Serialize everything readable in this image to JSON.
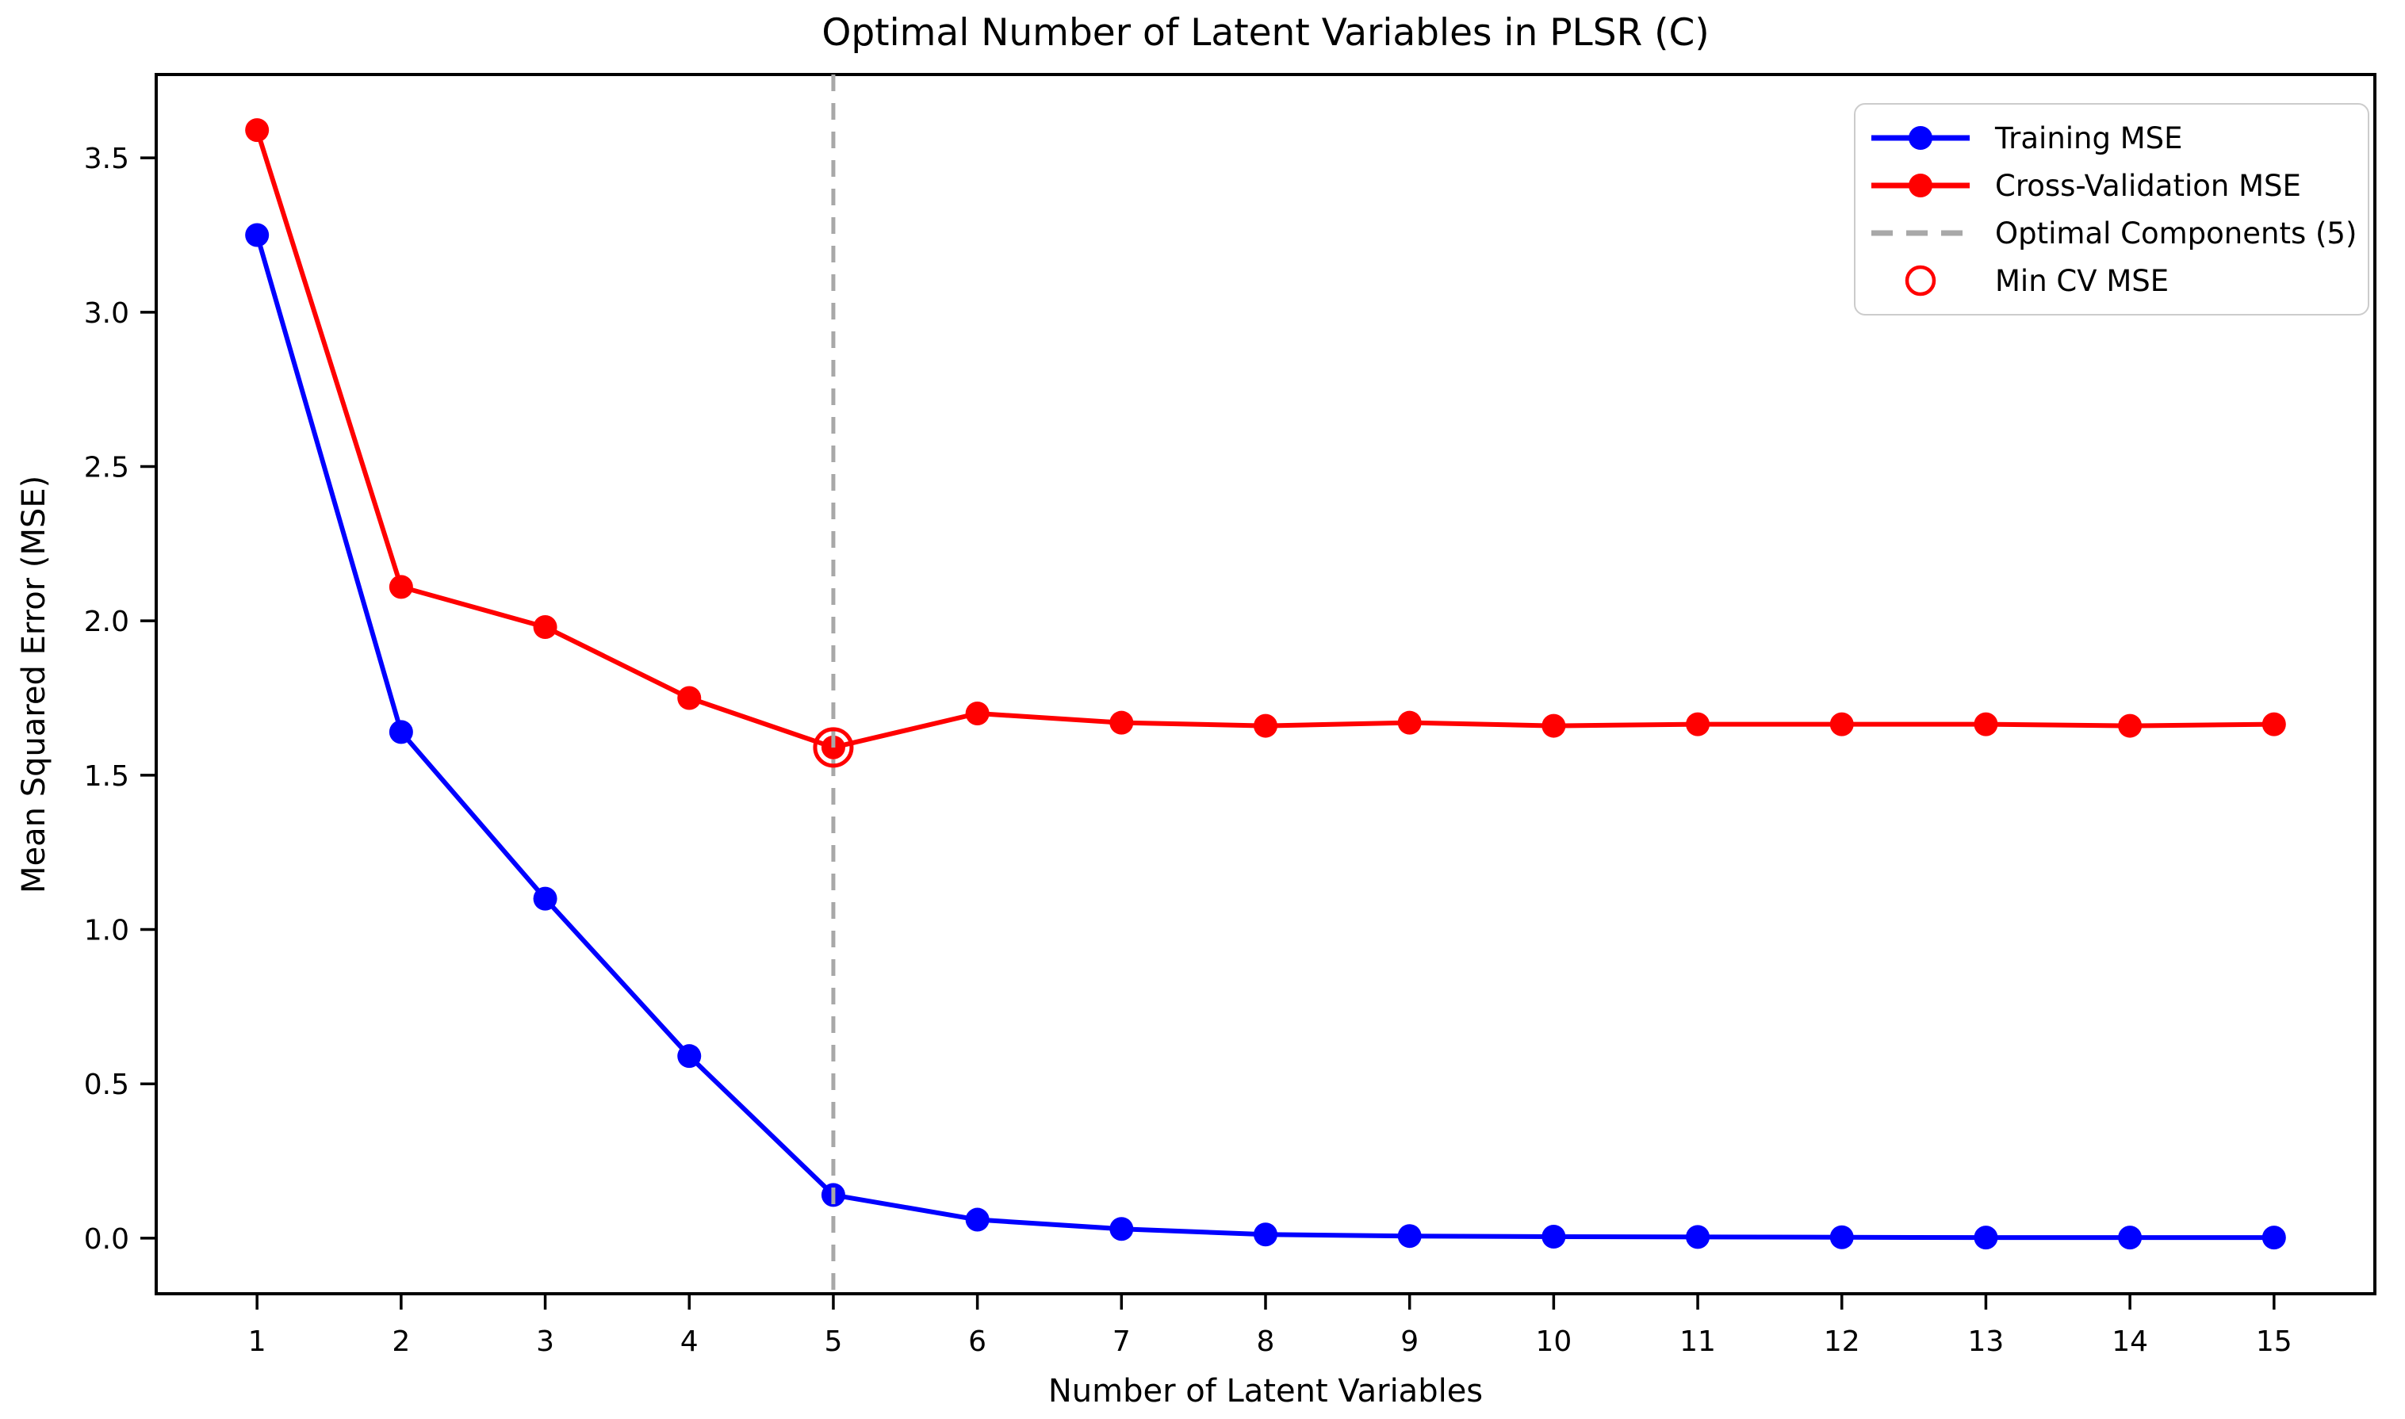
{
  "chart_data": {
    "type": "line",
    "title": "Optimal Number of Latent Variables in PLSR (C)",
    "xlabel": "Number of Latent Variables",
    "ylabel": "Mean Squared Error (MSE)",
    "x": [
      1,
      2,
      3,
      4,
      5,
      6,
      7,
      8,
      9,
      10,
      11,
      12,
      13,
      14,
      15
    ],
    "series": [
      {
        "name": "Training MSE",
        "color": "#0000ff",
        "marker": "filled-circle",
        "values": [
          3.25,
          1.64,
          1.1,
          0.59,
          0.14,
          0.06,
          0.03,
          0.012,
          0.007,
          0.005,
          0.004,
          0.003,
          0.002,
          0.002,
          0.002
        ]
      },
      {
        "name": "Cross-Validation MSE",
        "color": "#ff0000",
        "marker": "filled-circle",
        "values": [
          3.59,
          2.11,
          1.98,
          1.75,
          1.59,
          1.7,
          1.67,
          1.66,
          1.67,
          1.66,
          1.665,
          1.665,
          1.665,
          1.66,
          1.665
        ]
      }
    ],
    "vline": {
      "x": 5,
      "label": "Optimal Components (5)",
      "color": "#a8a8a8",
      "style": "dashed"
    },
    "min_cv_marker": {
      "x": 5,
      "y": 1.59,
      "label": "Min CV MSE",
      "color": "#ff0000"
    },
    "optimal_components": 5,
    "xticks": [
      1,
      2,
      3,
      4,
      5,
      6,
      7,
      8,
      9,
      10,
      11,
      12,
      13,
      14,
      15
    ],
    "yticks": [
      0.0,
      0.5,
      1.0,
      1.5,
      2.0,
      2.5,
      3.0,
      3.5
    ],
    "xlim": [
      0.3,
      15.7
    ],
    "ylim": [
      -0.18,
      3.77
    ],
    "grid": false,
    "axis_color": "#000000",
    "legend": {
      "position": "upper right",
      "entries": [
        {
          "label": "Training MSE",
          "type": "line-marker",
          "color": "#0000ff"
        },
        {
          "label": "Cross-Validation MSE",
          "type": "line-marker",
          "color": "#ff0000"
        },
        {
          "label": "Optimal Components (5)",
          "type": "dashed-line",
          "color": "#a8a8a8"
        },
        {
          "label": "Min CV MSE",
          "type": "open-circle",
          "color": "#ff0000"
        }
      ]
    }
  }
}
